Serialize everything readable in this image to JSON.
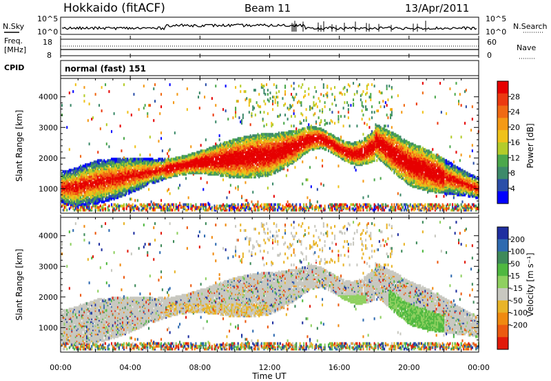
{
  "header": {
    "station": "Hokkaido (fitACF)",
    "beam": "Beam 11",
    "date": "13/Apr/2011"
  },
  "side_labels": {
    "nsky": "N.Sky",
    "nsearch": "N.Search",
    "freq_line1": "Freq.",
    "freq_line2": "[MHz]",
    "nave": "Nave",
    "cpid": "CPID",
    "cpid_value": "normal (fast) 151"
  },
  "noise_axis": {
    "ticks_left": [
      "10^5",
      "10^0"
    ],
    "ticks_right": [
      "10^5",
      "10^0"
    ]
  },
  "freq_axis": {
    "ticks_left": [
      "18",
      "8"
    ],
    "ticks_right": [
      "60",
      "0"
    ]
  },
  "colors": {
    "power": [
      "#0000ff",
      "#2b4fa8",
      "#3d8a6a",
      "#4ca84c",
      "#b4cc2a",
      "#f0c21a",
      "#f49a16",
      "#f06a14",
      "#ec3a10",
      "#e60000"
    ],
    "velocity": [
      "#1f2fa0",
      "#2e6ab0",
      "#3e8a5a",
      "#4fb840",
      "#8fd060",
      "#c8c8c0",
      "#e8b428",
      "#f08a10",
      "#ec5a10",
      "#e21a0a"
    ]
  },
  "chart_data": [
    {
      "type": "heatmap",
      "name": "power",
      "xlabel": "",
      "ylabel": "Slant Range [km]",
      "x_ticks": [
        "00:00",
        "04:00",
        "08:00",
        "12:00",
        "16:00",
        "20:00",
        "00:00"
      ],
      "y_ticks": [
        1000,
        2000,
        3000,
        4000
      ],
      "xlim": [
        0,
        24
      ],
      "ylim": [
        200,
        4600
      ],
      "colorbar_label": "Power [dB]",
      "colorbar_ticks": [
        4,
        8,
        12,
        16,
        20,
        24,
        28
      ],
      "colorbar_range": [
        0,
        32
      ]
    },
    {
      "type": "heatmap",
      "name": "velocity",
      "xlabel": "Time UT",
      "ylabel": "Slant Range [km]",
      "x_ticks": [
        "00:00",
        "04:00",
        "08:00",
        "12:00",
        "16:00",
        "20:00",
        "00:00"
      ],
      "y_ticks": [
        1000,
        2000,
        3000,
        4000
      ],
      "xlim": [
        0,
        24
      ],
      "ylim": [
        200,
        4600
      ],
      "colorbar_label": "Velocity [m s⁻¹]",
      "colorbar_ticks": [
        200,
        100,
        50,
        15,
        -15,
        -50,
        -100,
        -200
      ]
    }
  ]
}
